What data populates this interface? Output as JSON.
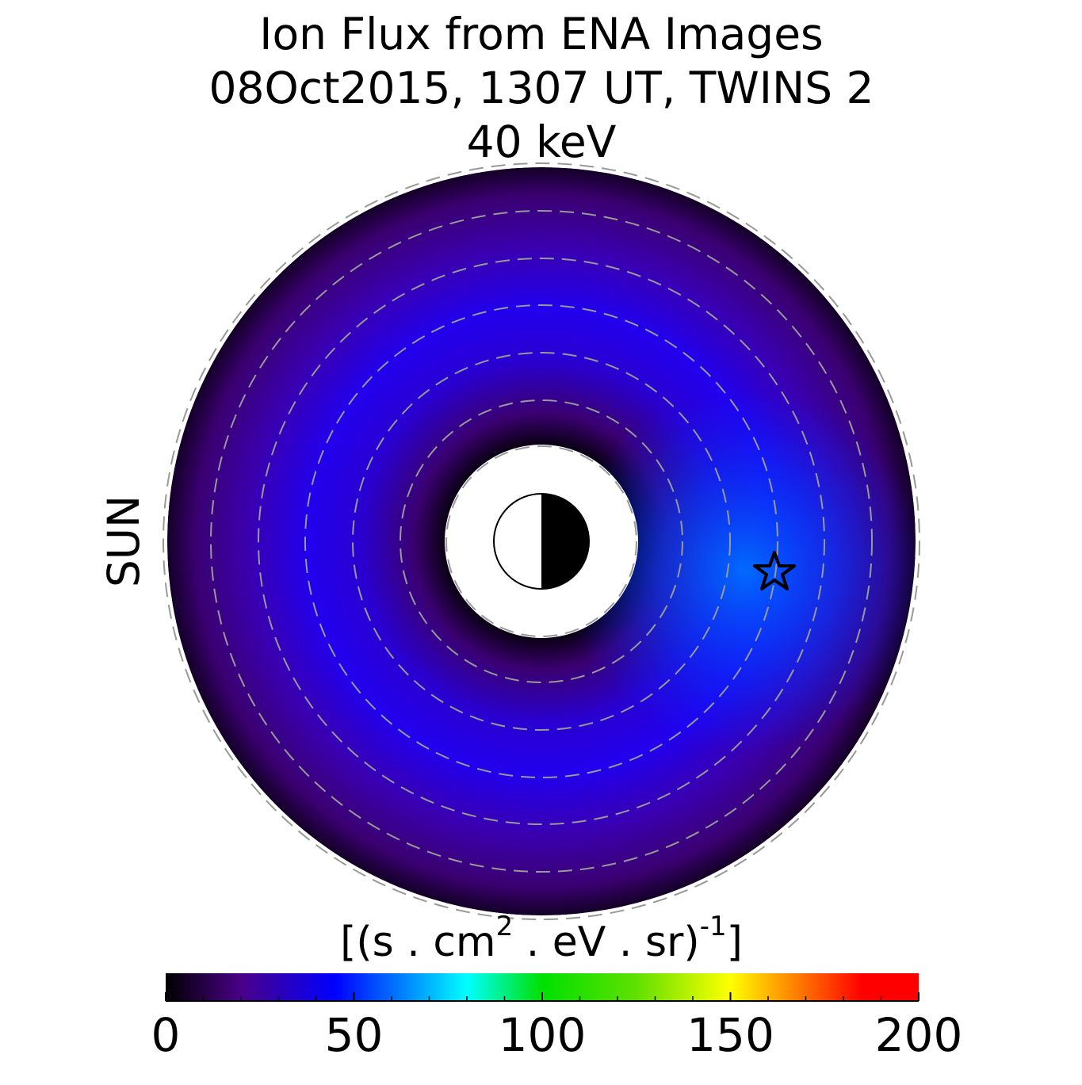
{
  "chart_data": {
    "type": "colormap",
    "title": [
      "Ion Flux from  ENA Images",
      "08Oct2015, 1307 UT,  TWINS 2",
      "40 keV"
    ],
    "sun_label": "SUN",
    "sun_color": "#ffa000",
    "colorbar_label": [
      "[(s . cm",
      "2",
      "  . eV . sr)",
      "-1",
      "]"
    ],
    "colorbar_lim": [
      0,
      200
    ],
    "colorbar_ticks": [
      0,
      50,
      100,
      150,
      200
    ],
    "colorbar_minor_ticks": [
      10,
      20,
      30,
      40,
      60,
      70,
      80,
      90,
      110,
      120,
      130,
      140,
      160,
      170,
      180,
      190
    ],
    "colormap": [
      {
        "value": 0,
        "color": "#000000"
      },
      {
        "value": 20,
        "color": "#4a0088"
      },
      {
        "value": 45,
        "color": "#0000ff"
      },
      {
        "value": 65,
        "color": "#0090ff"
      },
      {
        "value": 80,
        "color": "#00ffff"
      },
      {
        "value": 100,
        "color": "#00e000"
      },
      {
        "value": 125,
        "color": "#60e000"
      },
      {
        "value": 150,
        "color": "#ffff00"
      },
      {
        "value": 165,
        "color": "#ff9000"
      },
      {
        "value": 185,
        "color": "#ff0000"
      },
      {
        "value": 200,
        "color": "#ff0000"
      }
    ]
  }
}
